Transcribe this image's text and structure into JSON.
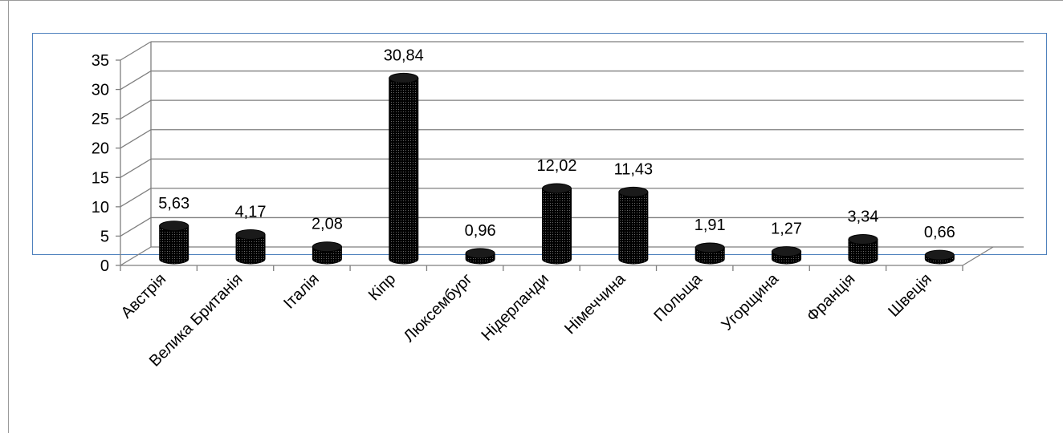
{
  "chart_data": {
    "type": "bar",
    "title": "",
    "xlabel": "",
    "ylabel": "",
    "ylim": [
      0,
      35
    ],
    "yticks": [
      "0",
      "5",
      "10",
      "15",
      "20",
      "25",
      "30",
      "35"
    ],
    "grid": true,
    "style": "3d-cylinder",
    "bar_color": "#000000",
    "categories": [
      "Австрія",
      "Велика Британія",
      "Італія",
      "Кіпр",
      "Люксембург",
      "Нідерланди",
      "Німеччина",
      "Польща",
      "Угорщина",
      "Франція",
      "Швеція"
    ],
    "values": [
      5.63,
      4.17,
      2.08,
      30.84,
      0.96,
      12.02,
      11.43,
      1.91,
      1.27,
      3.34,
      0.66
    ],
    "value_labels": [
      "5,63",
      "4,17",
      "2,08",
      "30,84",
      "0,96",
      "12,02",
      "11,43",
      "1,91",
      "1,27",
      "3,34",
      "0,66"
    ]
  }
}
